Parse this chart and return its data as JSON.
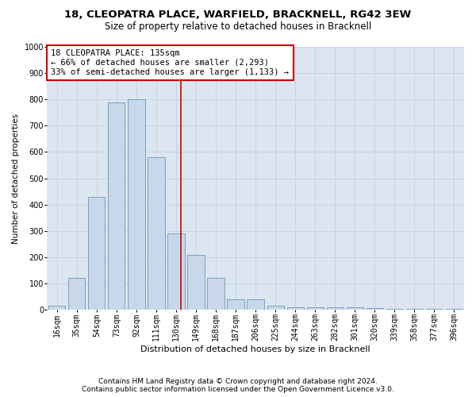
{
  "title1": "18, CLEOPATRA PLACE, WARFIELD, BRACKNELL, RG42 3EW",
  "title2": "Size of property relative to detached houses in Bracknell",
  "xlabel": "Distribution of detached houses by size in Bracknell",
  "ylabel": "Number of detached properties",
  "categories": [
    "16sqm",
    "35sqm",
    "54sqm",
    "73sqm",
    "92sqm",
    "111sqm",
    "130sqm",
    "149sqm",
    "168sqm",
    "187sqm",
    "206sqm",
    "225sqm",
    "244sqm",
    "263sqm",
    "282sqm",
    "301sqm",
    "320sqm",
    "339sqm",
    "358sqm",
    "377sqm",
    "396sqm"
  ],
  "values": [
    15,
    120,
    430,
    790,
    800,
    580,
    290,
    210,
    120,
    40,
    40,
    15,
    10,
    8,
    8,
    10,
    5,
    3,
    3,
    3,
    3
  ],
  "bar_color": "#c8d8ea",
  "bar_edge_color": "#7aa0c0",
  "bar_width": 0.85,
  "red_line_x": 6.26,
  "red_line_color": "#cc0000",
  "annotation_line1": "18 CLEOPATRA PLACE: 135sqm",
  "annotation_line2": "← 66% of detached houses are smaller (2,293)",
  "annotation_line3": "33% of semi-detached houses are larger (1,133) →",
  "annotation_box_color": "#ffffff",
  "annotation_box_edge": "#cc0000",
  "ylim_max": 1000,
  "yticks": [
    0,
    100,
    200,
    300,
    400,
    500,
    600,
    700,
    800,
    900,
    1000
  ],
  "grid_color": "#c5cfe0",
  "bg_color": "#dce6f0",
  "footer1": "Contains HM Land Registry data © Crown copyright and database right 2024.",
  "footer2": "Contains public sector information licensed under the Open Government Licence v3.0.",
  "title1_fontsize": 9.5,
  "title2_fontsize": 8.5,
  "xlabel_fontsize": 8,
  "ylabel_fontsize": 7.5,
  "tick_fontsize": 7,
  "annotation_fontsize": 7.5,
  "footer_fontsize": 6.5
}
